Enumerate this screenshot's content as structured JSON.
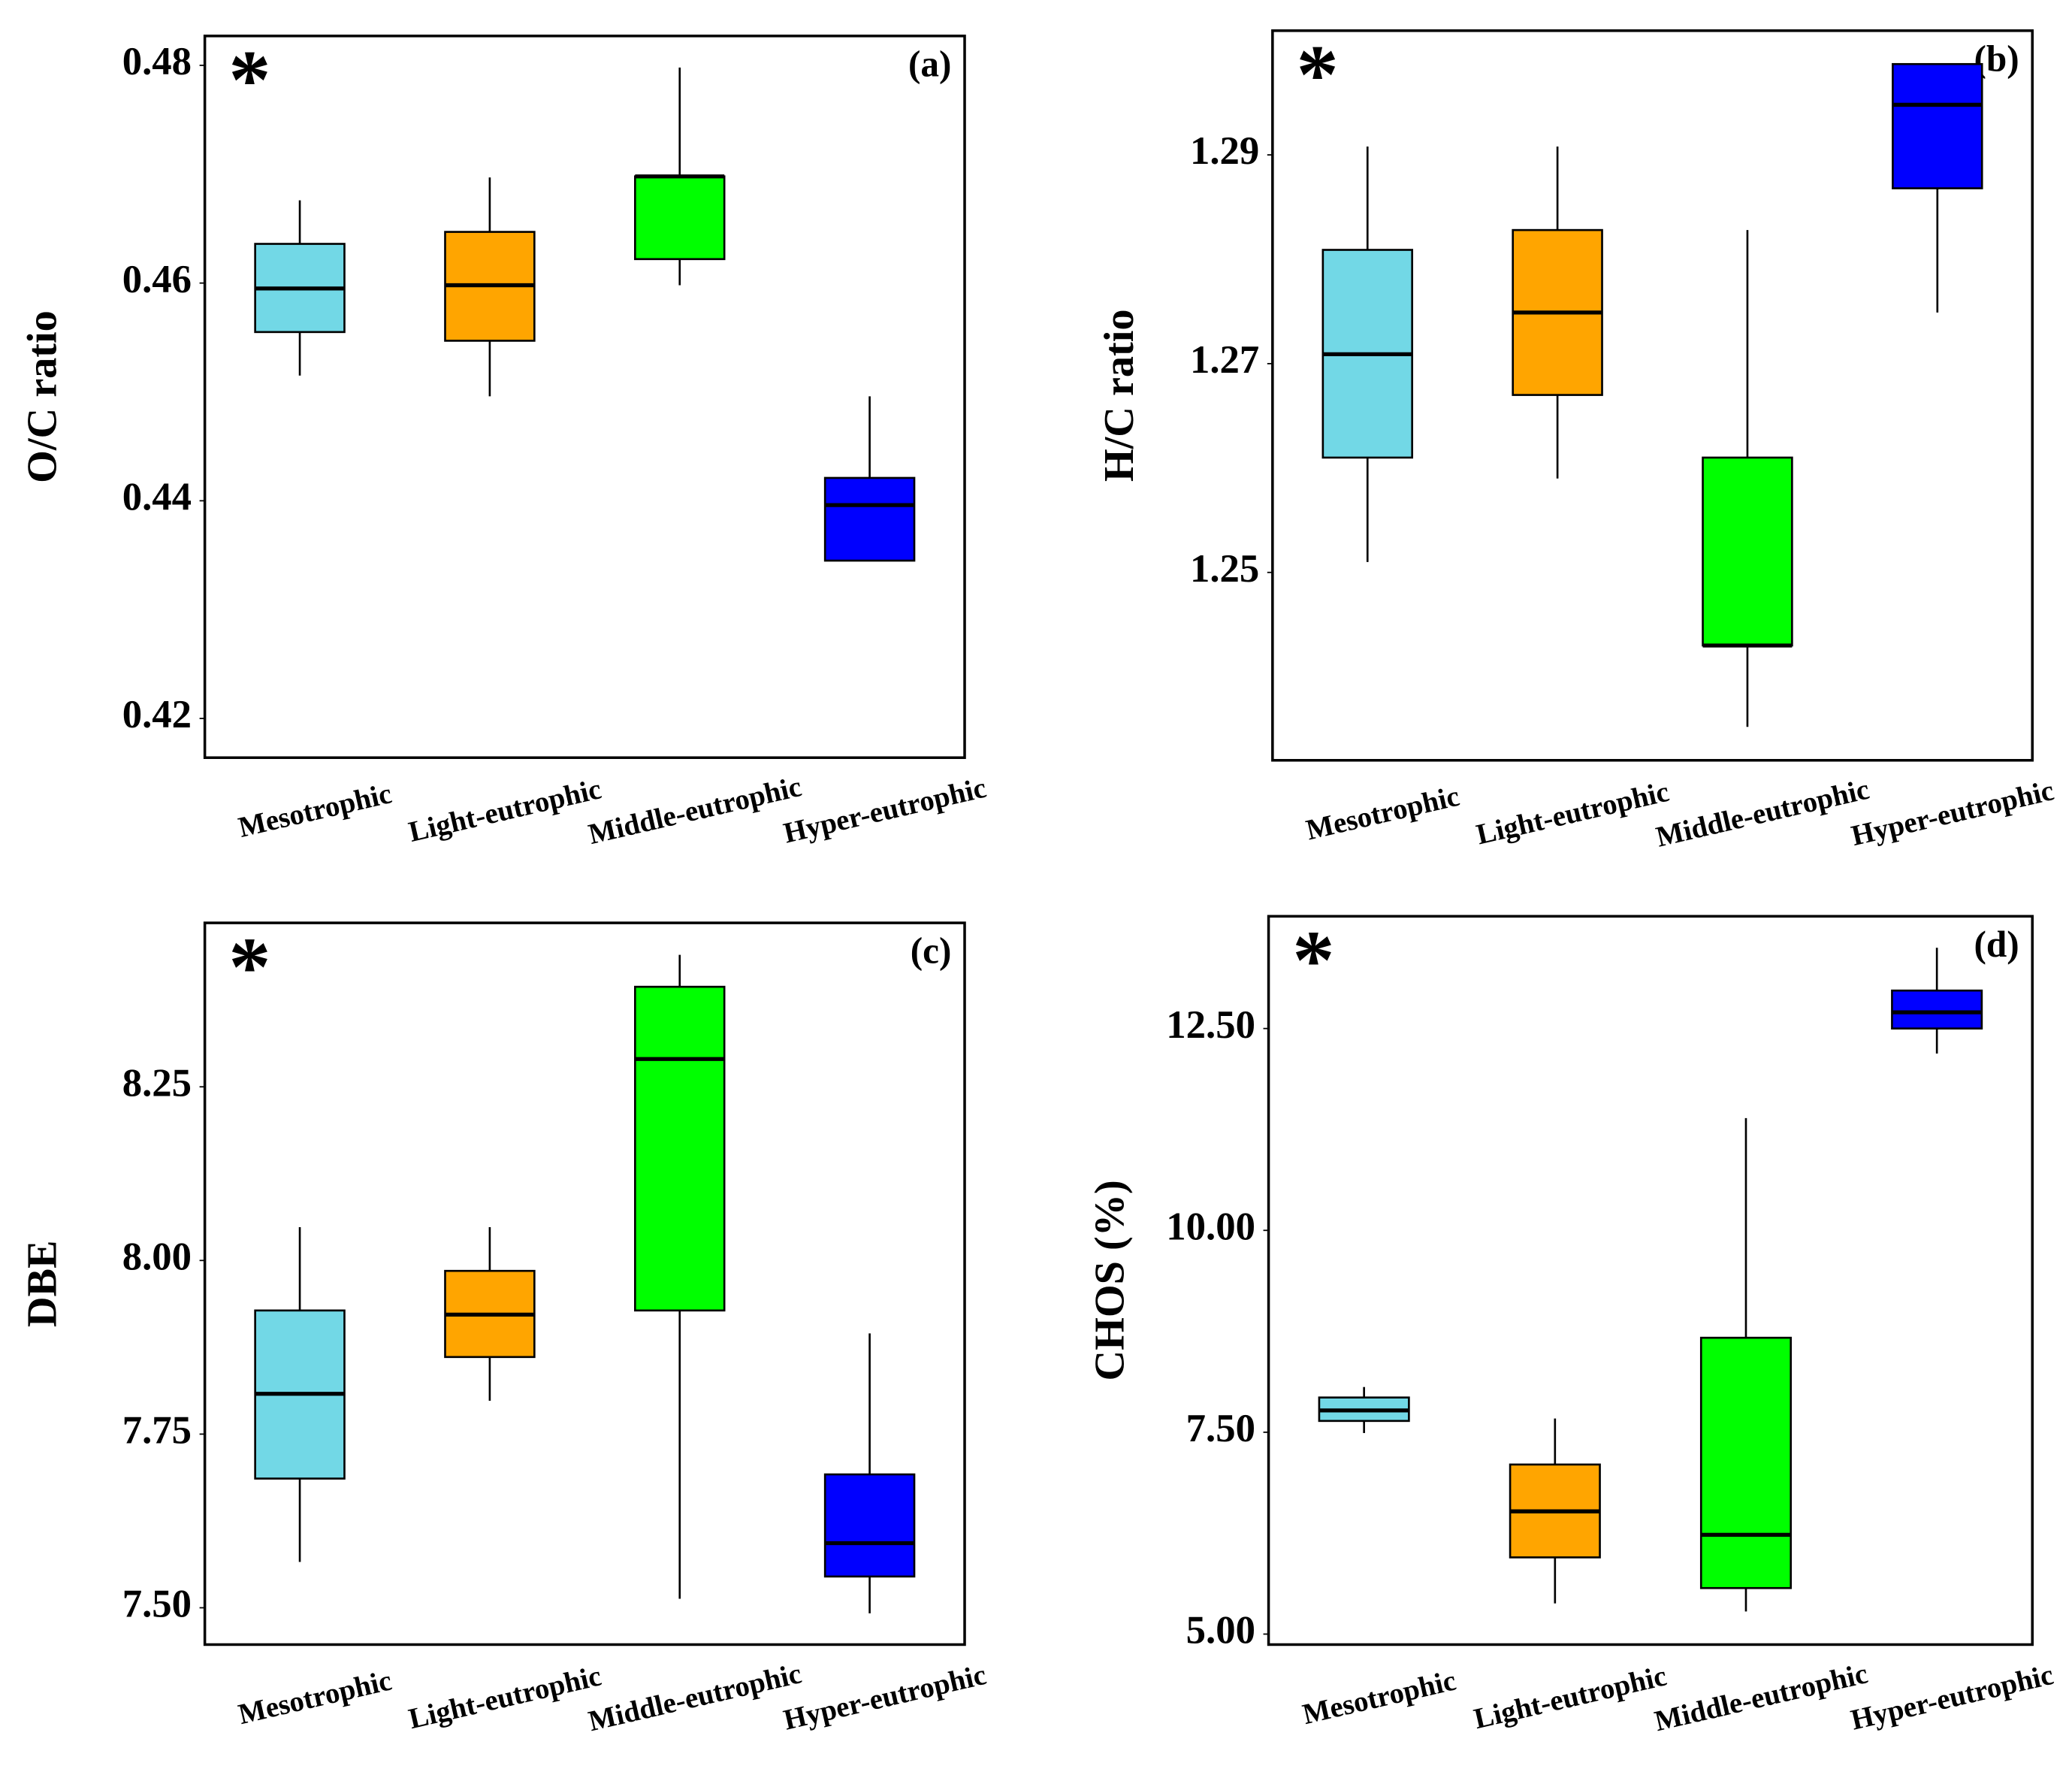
{
  "chart_data": [
    {
      "type": "box",
      "title": "(a)",
      "annotation": "*",
      "y_label": "O/C ratio",
      "categories": [
        "Mesotrophic",
        "Light-eutrophic",
        "Middle-eutrophic",
        "Hyper-eutrophic"
      ],
      "colors": [
        "#72d8e6",
        "#ffa500",
        "#00ff00",
        "#0000ff"
      ],
      "low": [
        0.4515,
        0.4496,
        0.4598,
        0.4345
      ],
      "q1": [
        0.4555,
        0.4547,
        0.4622,
        0.4345
      ],
      "median": [
        0.4595,
        0.4598,
        0.4698,
        0.4396
      ],
      "q3": [
        0.4636,
        0.4647,
        0.4698,
        0.4421
      ],
      "high": [
        0.4676,
        0.4697,
        0.4798,
        0.4496
      ],
      "ylim": [
        0.4164,
        0.4827
      ],
      "yticks": [
        0.42,
        0.44,
        0.46,
        0.48
      ]
    },
    {
      "type": "box",
      "title": "(b)",
      "annotation": "*",
      "y_label": "H/C ratio",
      "categories": [
        "Mesotrophic",
        "Light-eutrophic",
        "Middle-eutrophic",
        "Hyper-eutrophic"
      ],
      "colors": [
        "#72d8e6",
        "#ffa500",
        "#00ff00",
        "#0000ff"
      ],
      "low": [
        1.251,
        1.259,
        1.2352,
        1.2749
      ],
      "q1": [
        1.261,
        1.267,
        1.243,
        1.2868
      ],
      "median": [
        1.2709,
        1.2749,
        1.243,
        1.2948
      ],
      "q3": [
        1.2809,
        1.2828,
        1.261,
        1.2987
      ],
      "high": [
        1.2908,
        1.2908,
        1.2828,
        1.2987
      ],
      "ylim": [
        1.232,
        1.3019
      ],
      "yticks": [
        1.25,
        1.27,
        1.29
      ]
    },
    {
      "type": "box",
      "title": "(c)",
      "annotation": "*",
      "y_label": "DBE",
      "categories": [
        "Mesotrophic",
        "Light-eutrophic",
        "Middle-eutrophic",
        "Hyper-eutrophic"
      ],
      "colors": [
        "#72d8e6",
        "#ffa500",
        "#00ff00",
        "#0000ff"
      ],
      "low": [
        7.566,
        7.798,
        7.513,
        7.492
      ],
      "q1": [
        7.686,
        7.861,
        7.928,
        7.545
      ],
      "median": [
        7.808,
        7.922,
        8.29,
        7.593
      ],
      "q3": [
        7.928,
        7.985,
        8.394,
        7.692
      ],
      "high": [
        8.048,
        8.048,
        8.44,
        7.895
      ],
      "ylim": [
        7.447,
        8.486
      ],
      "yticks": [
        {
          "value": 7.5,
          "label": "7.50"
        },
        7.75,
        {
          "value": 8,
          "label": "8.00"
        },
        8.25
      ]
    },
    {
      "type": "box",
      "title": "(d)",
      "annotation": "*",
      "y_label": "CHOS (%)",
      "categories": [
        "Mesotrophic",
        "Light-eutrophic",
        "Middle-eutrophic",
        "Hyper-eutrophic"
      ],
      "colors": [
        "#72d8e6",
        "#ffa500",
        "#00ff00",
        "#0000ff"
      ],
      "low": [
        7.49,
        5.38,
        5.28,
        12.19
      ],
      "q1": [
        7.64,
        5.95,
        5.57,
        12.5
      ],
      "median": [
        7.77,
        6.52,
        6.23,
        12.7
      ],
      "q3": [
        7.93,
        7.1,
        8.67,
        12.97
      ],
      "high": [
        8.06,
        7.67,
        11.39,
        13.5
      ],
      "ylim": [
        4.87,
        13.89
      ],
      "yticks": [
        {
          "value": 5,
          "label": "5.00"
        },
        {
          "value": 7.5,
          "label": "7.50"
        },
        {
          "value": 10,
          "label": "10.00"
        },
        {
          "value": 12.5,
          "label": "12.50"
        }
      ]
    }
  ]
}
